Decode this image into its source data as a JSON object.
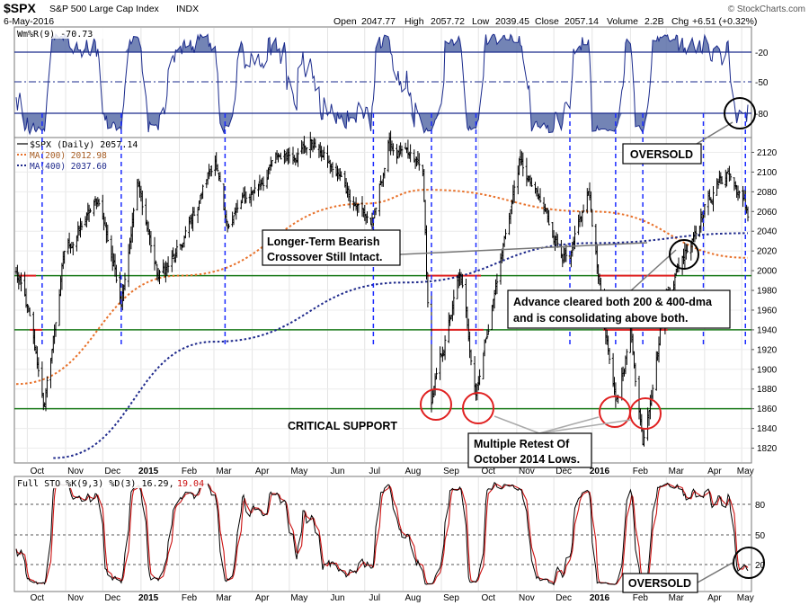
{
  "header": {
    "symbol": "$SPX",
    "name": "S&P 500 Large Cap Index",
    "exchange": "INDX",
    "date": "6-May-2016",
    "open_label": "Open",
    "open": "2047.77",
    "high_label": "High",
    "high": "2057.72",
    "low_label": "Low",
    "low": "2039.45",
    "close_label": "Close",
    "close": "2057.14",
    "volume_label": "Volume",
    "volume": "2.2B",
    "chg_label": "Chg",
    "chg": "+6.51 (+0.32%)",
    "watermark": "© StockCharts.com"
  },
  "panels": {
    "williams": {
      "legend": "Wm%R(9) -70.73",
      "levels": [
        "-20",
        "-50",
        "-80"
      ]
    },
    "price": {
      "legend_main": "$SPX (Daily) 2057.14",
      "legend_ma200": "MA(200) 2012.98",
      "legend_ma400": "MA(400) 2037.60",
      "y_ticks": [
        "2120",
        "2100",
        "2080",
        "2060",
        "2040",
        "2020",
        "2000",
        "1980",
        "1960",
        "1940",
        "1920",
        "1900",
        "1880",
        "1860",
        "1840",
        "1820"
      ]
    },
    "stoch": {
      "legend_a": "Full STO %K(9,3) %D(3) 16.29,",
      "legend_b": "19.04",
      "levels": [
        "80",
        "50",
        "20"
      ]
    }
  },
  "x_axis": {
    "labels": [
      "Oct",
      "Nov",
      "Dec",
      "2015",
      "Feb",
      "Mar",
      "Apr",
      "May",
      "Jun",
      "Jul",
      "Aug",
      "Sep",
      "Oct",
      "Nov",
      "Dec",
      "2016",
      "Feb",
      "Mar",
      "Apr",
      "May"
    ]
  },
  "annotations": {
    "oversold_top": "OVERSOLD",
    "oversold_bottom": "OVERSOLD",
    "bearish_line1": "Longer-Term Bearish",
    "bearish_line2": "Crossover Still Intact.",
    "advance_line1": "Advance cleared both 200 & 400-dma",
    "advance_line2": "and is consolidating above both.",
    "critical_support": "CRITICAL SUPPORT",
    "retest_line1": "Multiple Retest Of",
    "retest_line2": "October 2014 Lows."
  },
  "colors": {
    "price": "#000000",
    "ma200": "#e8712a",
    "ma400": "#1f2a8c",
    "support": "#1a7a1a",
    "resistance": "#e02020",
    "oscillator": "#1a2a8c",
    "oscillator_fill": "#5b6fa8",
    "stoch_d": "#cc1111",
    "circle": "#e02020"
  },
  "chart_data": {
    "type": "line",
    "title": "$SPX S&P 500 Large Cap Index INDX",
    "xlabel": "",
    "ylabel": "",
    "ylim": [
      1805,
      2135
    ],
    "grid": true,
    "x_range": [
      "2014-09-22",
      "2016-05-06"
    ],
    "price_keypoints": [
      [
        "2014-09-22",
        1997
      ],
      [
        "2014-10-01",
        1960
      ],
      [
        "2014-10-15",
        1862
      ],
      [
        "2014-10-31",
        2018
      ],
      [
        "2014-11-28",
        2072
      ],
      [
        "2014-12-16",
        1973
      ],
      [
        "2014-12-29",
        2090
      ],
      [
        "2015-01-15",
        1992
      ],
      [
        "2015-02-02",
        2020
      ],
      [
        "2015-03-02",
        2117
      ],
      [
        "2015-03-10",
        2045
      ],
      [
        "2015-04-24",
        2117
      ],
      [
        "2015-05-20",
        2130
      ],
      [
        "2015-07-08",
        2046
      ],
      [
        "2015-07-20",
        2128
      ],
      [
        "2015-08-17",
        2100
      ],
      [
        "2015-08-24",
        1867
      ],
      [
        "2015-09-16",
        1995
      ],
      [
        "2015-09-29",
        1881
      ],
      [
        "2015-11-03",
        2110
      ],
      [
        "2015-12-14",
        2005
      ],
      [
        "2015-12-29",
        2078
      ],
      [
        "2016-01-20",
        1859
      ],
      [
        "2016-02-01",
        1940
      ],
      [
        "2016-02-11",
        1829
      ],
      [
        "2016-03-01",
        1978
      ],
      [
        "2016-03-31",
        2063
      ],
      [
        "2016-04-20",
        2102
      ],
      [
        "2016-05-06",
        2057
      ]
    ],
    "series": [
      {
        "name": "MA(200) 2012.98",
        "values_at_dates": [
          [
            "2014-09-22",
            1885
          ],
          [
            "2015-02-01",
            1995
          ],
          [
            "2015-07-01",
            2068
          ],
          [
            "2015-08-20",
            2082
          ],
          [
            "2016-01-01",
            2060
          ],
          [
            "2016-05-06",
            2013
          ]
        ]
      },
      {
        "name": "MA(400) 2037.60",
        "values_at_dates": [
          [
            "2014-10-22",
            1810
          ],
          [
            "2015-03-01",
            1928
          ],
          [
            "2015-08-01",
            1988
          ],
          [
            "2016-01-01",
            2028
          ],
          [
            "2016-05-06",
            2038
          ]
        ]
      }
    ],
    "horizontal_levels": {
      "critical_support": 1860,
      "mid_support": 1940,
      "resistance": 1995
    },
    "williams_r": {
      "last": -70.73,
      "levels": [
        -20,
        -50,
        -80
      ]
    },
    "stochastic": {
      "k": 16.29,
      "d": 19.04,
      "levels": [
        80,
        50,
        20
      ]
    }
  }
}
